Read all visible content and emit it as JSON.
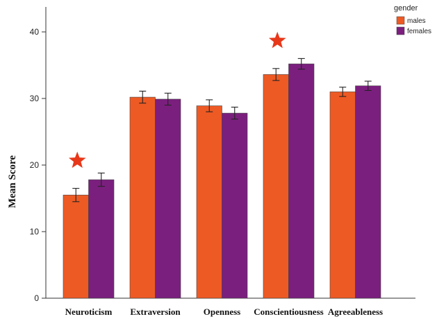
{
  "chart_data": {
    "type": "bar",
    "categories": [
      "Neuroticism",
      "Extraversion",
      "Openness",
      "Conscientiousness",
      "Agreeableness"
    ],
    "series": [
      {
        "name": "males",
        "color": "#EE5A24",
        "values": [
          15.5,
          30.2,
          28.9,
          33.6,
          31.0
        ],
        "errors": [
          1.0,
          0.9,
          0.9,
          0.9,
          0.7
        ]
      },
      {
        "name": "females",
        "color": "#7B1F7E",
        "values": [
          17.8,
          29.9,
          27.8,
          35.2,
          31.9
        ],
        "errors": [
          1.0,
          0.9,
          0.9,
          0.8,
          0.7
        ]
      }
    ],
    "significant": [
      "Neuroticism",
      "Conscientiousness"
    ],
    "significance_marker_color": "#E8381A",
    "ylabel": "Mean Score",
    "xlabel": "",
    "ylim": [
      0,
      40
    ],
    "yticks": [
      0,
      10,
      20,
      30,
      40
    ],
    "legend_title": "gender",
    "legend_position": "top-right",
    "grid": false
  }
}
